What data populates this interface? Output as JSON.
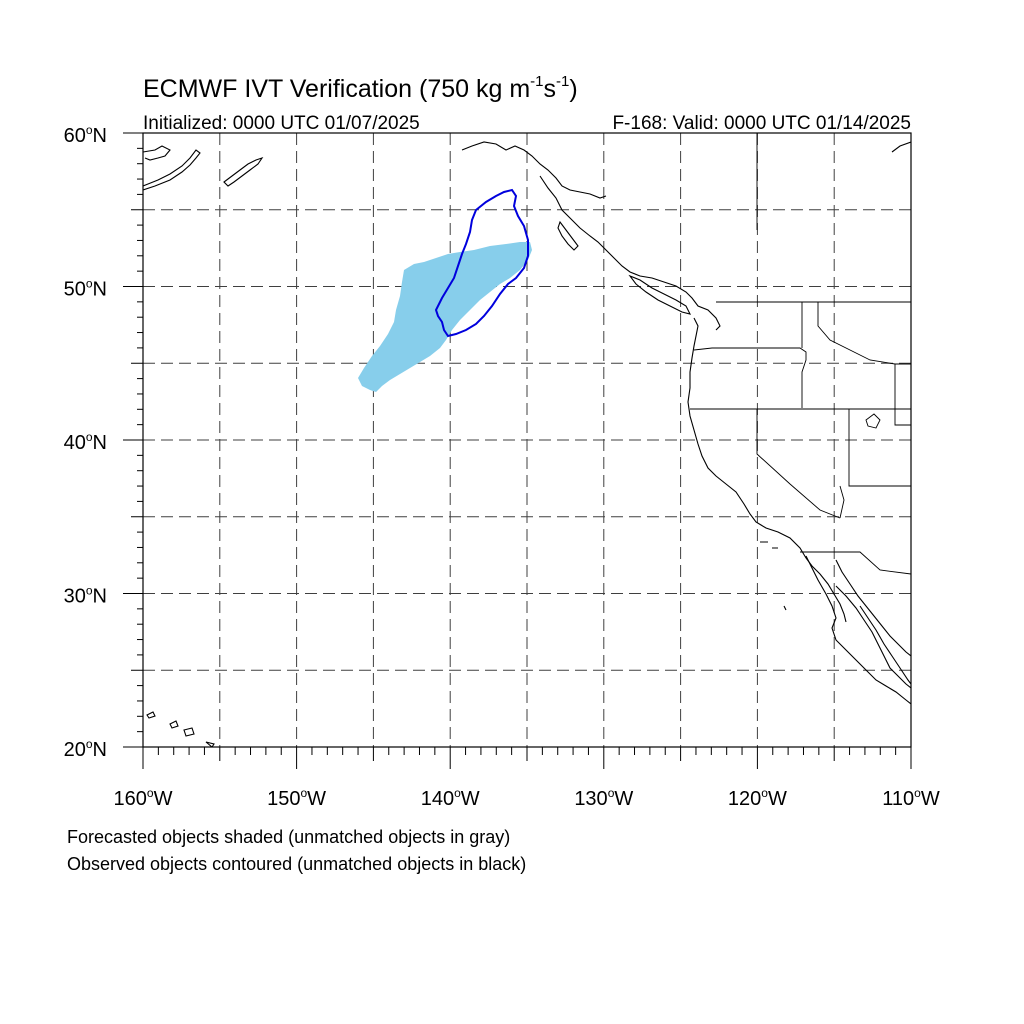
{
  "title": {
    "main": "ECMWF IVT Verification (750 kg m",
    "exp1": "-1",
    "mid": "s",
    "exp2": "-1",
    "close": ")"
  },
  "subtitle_left": "Initialized: 0000 UTC 01/07/2025",
  "subtitle_right": "F-168: Valid: 0000 UTC 01/14/2025",
  "lat_labels": [
    "60",
    "50",
    "40",
    "30",
    "20"
  ],
  "lat_suffix": "N",
  "lon_labels": [
    "160",
    "150",
    "140",
    "130",
    "120",
    "110"
  ],
  "lon_suffix": "W",
  "degree_symbol": "o",
  "footnote_line1": "Forecasted objects shaded (unmatched objects in gray)",
  "footnote_line2": "Observed objects contoured (unmatched objects in black)",
  "colors": {
    "forecast_fill": "#87ceeb",
    "observed_contour": "#0000dd",
    "grid": "#000000",
    "coastline": "#000000"
  },
  "map_extent": {
    "lon_min": -160,
    "lon_max": -110,
    "lat_min": 20,
    "lat_max": 60
  }
}
